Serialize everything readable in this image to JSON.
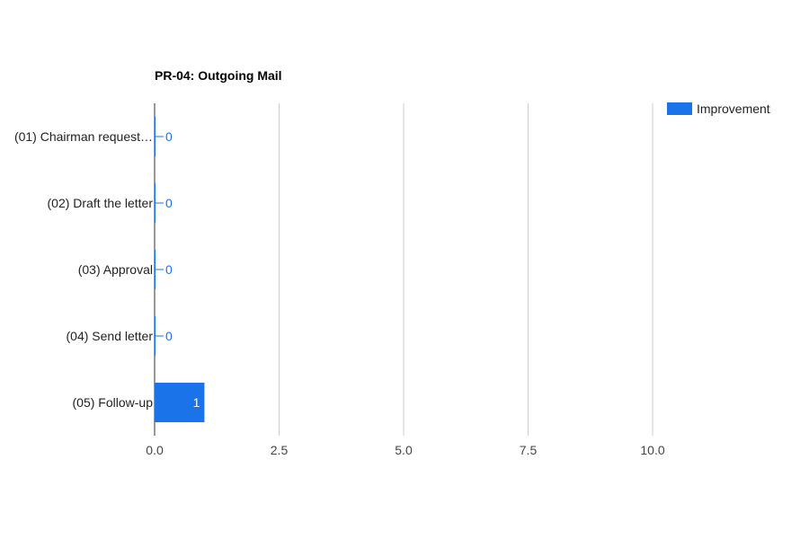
{
  "chart_data": {
    "type": "bar",
    "orientation": "horizontal",
    "title": "PR-04: Outgoing Mail",
    "categories": [
      "(01) Chairman request…",
      "(02) Draft the letter",
      "(03) Approval",
      "(04) Send letter",
      "(05) Follow-up"
    ],
    "series": [
      {
        "name": "Improvement",
        "values": [
          0,
          0,
          0,
          0,
          1
        ],
        "color": "#1a73e8"
      }
    ],
    "xlim": [
      0,
      12
    ],
    "x_ticks": [
      0,
      2.5,
      5,
      7.5,
      10
    ],
    "x_tick_labels": [
      "0.0",
      "2.5",
      "5.0",
      "7.5",
      "10.0"
    ],
    "data_labels": [
      "0",
      "0",
      "0",
      "0",
      "1"
    ],
    "grid": true,
    "legend_position": "top-right"
  }
}
